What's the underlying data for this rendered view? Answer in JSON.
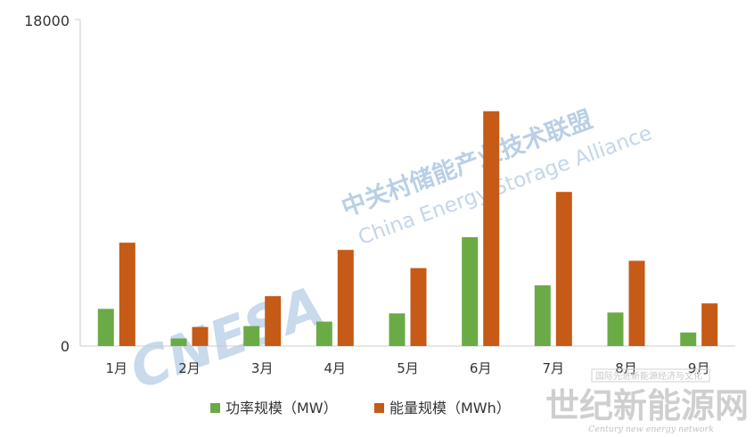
{
  "chart_data": {
    "type": "bar",
    "categories": [
      "1月",
      "2月",
      "3月",
      "4月",
      "5月",
      "6月",
      "7月",
      "8月",
      "9月"
    ],
    "series": [
      {
        "name": "功率规模（MW）",
        "color": "#6aab46",
        "values": [
          2050,
          420,
          1100,
          1350,
          1800,
          6000,
          3350,
          1850,
          750
        ]
      },
      {
        "name": "能量规模（MWh）",
        "color": "#c65a17",
        "values": [
          5700,
          1050,
          2750,
          5300,
          4300,
          12950,
          8500,
          4700,
          2350
        ]
      }
    ],
    "yticks": [
      "0",
      "18000"
    ],
    "ylim": [
      0,
      18000
    ],
    "legend_position": "bottom"
  },
  "watermarks": {
    "cnesa_cn": "中关村储能产业技术联盟",
    "cnesa_en": "China Energy Storage Alliance",
    "cnesa_logo": "CNESA",
    "site_cn": "世纪新能源网",
    "site_en": "Century new energy network",
    "site_top": "国际先进新能源经济与文化"
  }
}
